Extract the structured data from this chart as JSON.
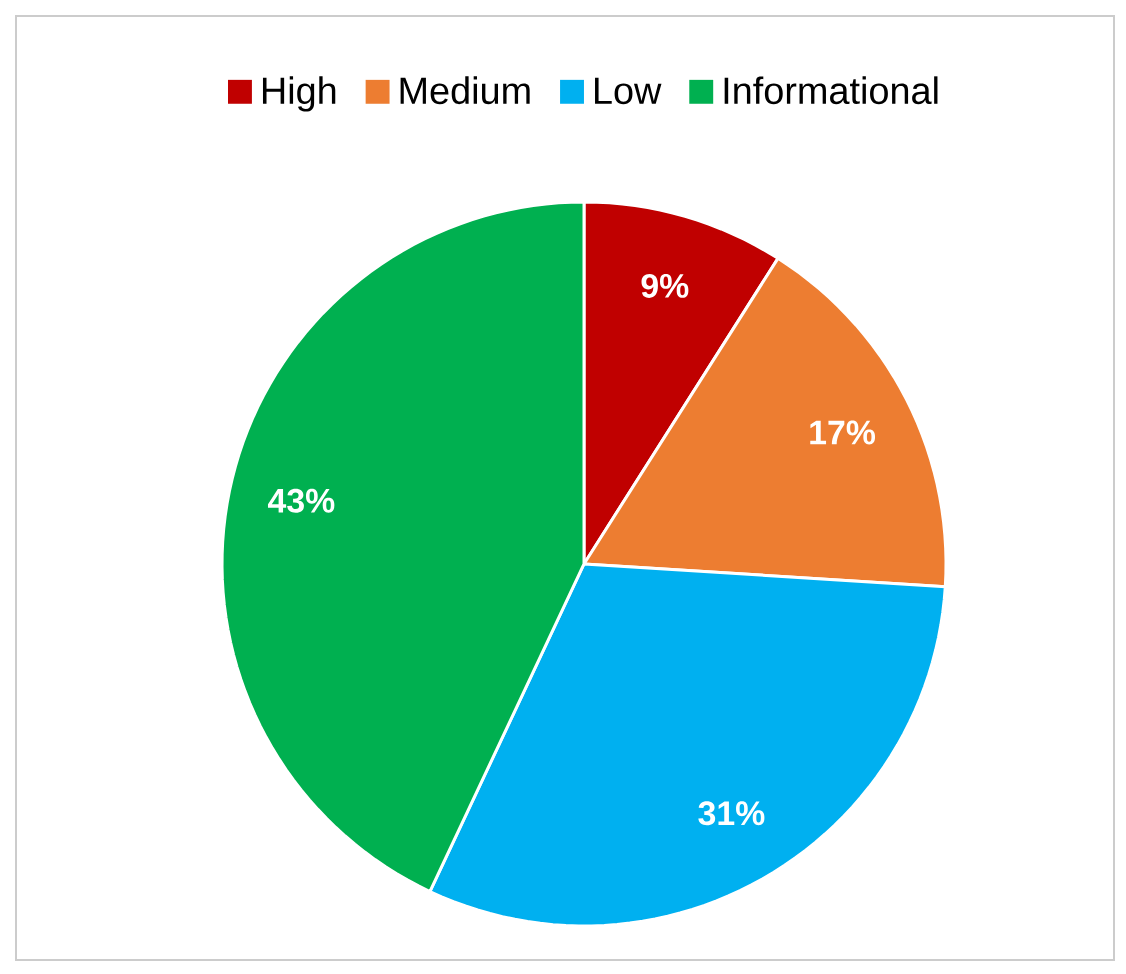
{
  "chart_data": {
    "type": "pie",
    "categories": [
      "High",
      "Medium",
      "Low",
      "Informational"
    ],
    "values": [
      9,
      17,
      31,
      43
    ],
    "colors": [
      "#c00000",
      "#ed7d31",
      "#00b0f0",
      "#00b050"
    ],
    "value_labels": [
      "9%",
      "17%",
      "31%",
      "43%"
    ],
    "legend": "top"
  }
}
